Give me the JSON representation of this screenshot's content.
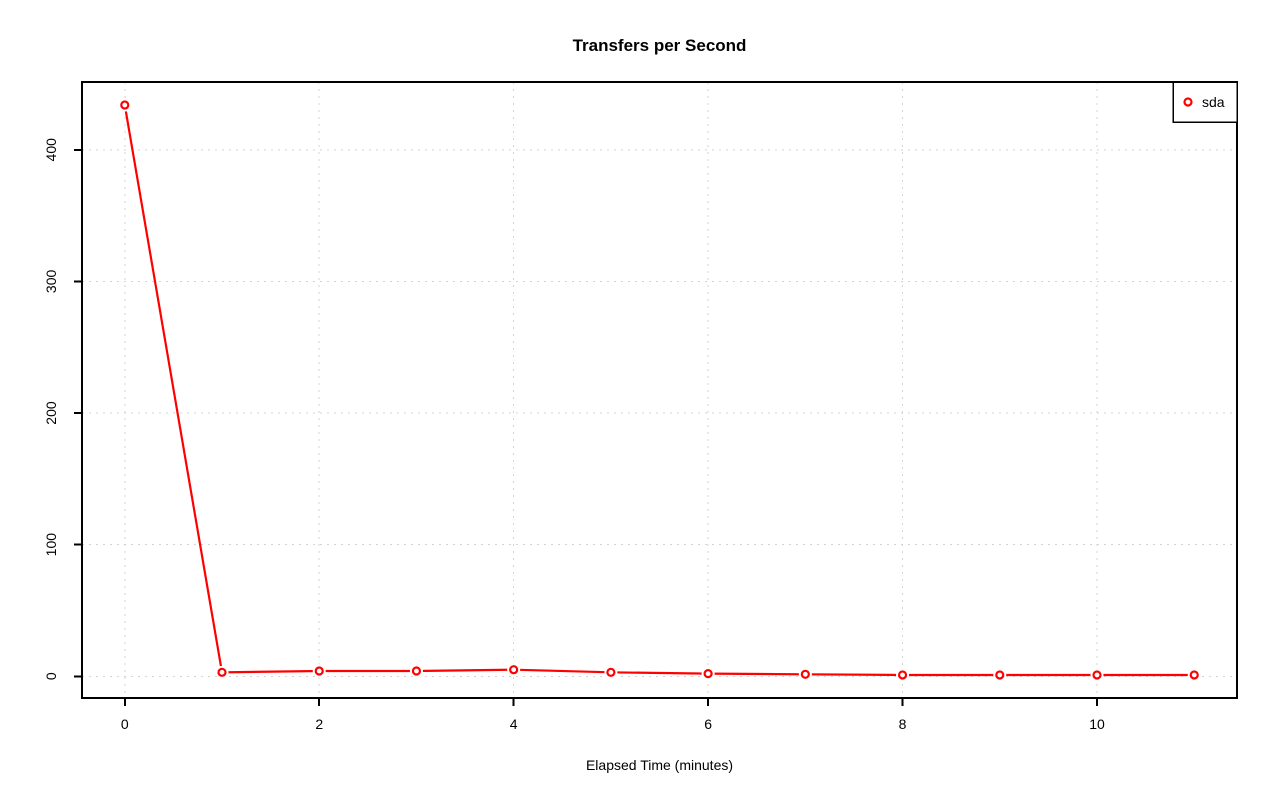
{
  "chart_data": {
    "type": "line",
    "title": "Transfers per Second",
    "xlabel": "Elapsed Time (minutes)",
    "ylabel": "",
    "x": [
      0,
      1,
      2,
      3,
      4,
      5,
      6,
      7,
      8,
      9,
      10,
      11
    ],
    "series": [
      {
        "name": "sda",
        "color": "#ff0000",
        "marker": "open-circle",
        "values": [
          434,
          3,
          4,
          4,
          5,
          3,
          2,
          1.5,
          1,
          1,
          1,
          1
        ]
      }
    ],
    "x_ticks": [
      0,
      2,
      4,
      6,
      8,
      10
    ],
    "y_ticks": [
      0,
      100,
      200,
      300,
      400
    ],
    "xlim": [
      -0.44,
      11.44
    ],
    "ylim": [
      -16.5,
      451.5
    ],
    "grid": "dotted",
    "legend": {
      "position": "top-right",
      "labels": [
        "sda"
      ]
    },
    "colors": {
      "series": "#ff0000",
      "grid": "#d3d3d3",
      "axis": "#000000",
      "text": "#000000",
      "background": "#ffffff"
    }
  }
}
